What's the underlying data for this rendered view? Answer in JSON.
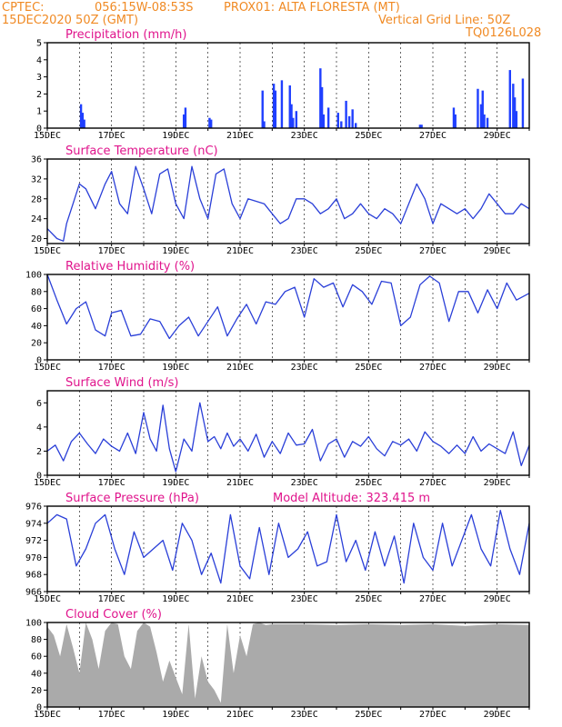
{
  "header": {
    "line1_left": "CPTEC:",
    "coords": "056:15W-08:53S",
    "station": "PROX01: ALTA FLORESTA (MT)",
    "run": "15DEC2020 50Z (GMT)",
    "grid_note": "Vertical Grid Line: 50Z",
    "model_code": "TQ0126L028"
  },
  "x_axis": {
    "start_label": "15DEC",
    "tick_labels": [
      "15DEC",
      "17DEC",
      "19DEC",
      "21DEC",
      "23DEC",
      "25DEC",
      "27DEC",
      "29DEC"
    ],
    "tick_days": [
      0,
      2,
      4,
      6,
      8,
      10,
      12,
      14
    ],
    "total_days": 15
  },
  "chart_data": [
    {
      "type": "bar",
      "title": "Precipitation (mm/h)",
      "ylim": [
        0,
        5
      ],
      "yticks": [
        0,
        1,
        2,
        3,
        4,
        5
      ],
      "color": "#1f3fff",
      "x": [
        1.05,
        1.1,
        1.15,
        4.25,
        4.3,
        5.05,
        5.1,
        6.7,
        6.75,
        7.05,
        7.1,
        7.3,
        7.55,
        7.6,
        7.65,
        7.75,
        8.5,
        8.55,
        8.6,
        8.75,
        9.05,
        9.15,
        9.3,
        9.4,
        9.5,
        9.6,
        11.6,
        11.65,
        12.65,
        12.7,
        13.4,
        13.5,
        13.55,
        13.6,
        13.7,
        14.4,
        14.5,
        14.55,
        14.6,
        14.8
      ],
      "values": [
        1.4,
        0.9,
        0.5,
        0.8,
        1.2,
        0.6,
        0.5,
        2.2,
        0.4,
        2.6,
        2.2,
        2.8,
        2.5,
        1.4,
        0.6,
        1.0,
        3.5,
        2.4,
        0.8,
        1.2,
        0.9,
        0.4,
        1.6,
        0.7,
        1.1,
        0.3,
        0.2,
        0.2,
        1.2,
        0.8,
        2.3,
        1.4,
        2.2,
        0.8,
        0.6,
        3.4,
        2.6,
        1.8,
        1.0,
        2.9
      ]
    },
    {
      "type": "line",
      "title": "Surface Temperature (nC)",
      "ylim": [
        19,
        36
      ],
      "yticks": [
        20,
        24,
        28,
        32,
        36
      ],
      "color": "#2a3fd8",
      "x": [
        0,
        0.3,
        0.5,
        0.6,
        0.8,
        1.0,
        1.2,
        1.5,
        1.8,
        2.0,
        2.25,
        2.5,
        2.75,
        3.0,
        3.25,
        3.5,
        3.75,
        4.0,
        4.25,
        4.5,
        4.75,
        5.0,
        5.25,
        5.5,
        5.75,
        6.0,
        6.25,
        6.5,
        6.75,
        7.0,
        7.25,
        7.5,
        7.75,
        8.0,
        8.25,
        8.5,
        8.75,
        9.0,
        9.25,
        9.5,
        9.75,
        10.0,
        10.25,
        10.5,
        10.75,
        11.0,
        11.25,
        11.5,
        11.75,
        12.0,
        12.25,
        12.5,
        12.75,
        13.0,
        13.25,
        13.5,
        13.75,
        14.0,
        14.25,
        14.5,
        14.75,
        15.0
      ],
      "values": [
        22,
        20,
        19.5,
        23,
        27,
        31,
        30,
        26,
        31,
        33.5,
        27,
        25,
        34.5,
        30,
        25,
        33,
        34,
        27,
        24,
        34.5,
        28,
        24,
        33,
        34,
        27,
        24,
        28,
        27.5,
        27,
        25,
        23,
        24,
        28,
        28,
        27,
        25,
        26,
        28,
        24,
        25,
        27,
        25,
        24,
        26,
        25,
        23,
        27,
        31,
        28,
        23,
        27,
        26,
        25,
        26,
        24,
        26,
        29,
        27,
        25,
        25,
        27,
        26
      ]
    },
    {
      "type": "line",
      "title": "Relative Humidity (%)",
      "ylim": [
        0,
        100
      ],
      "yticks": [
        0,
        20,
        40,
        60,
        80,
        100
      ],
      "color": "#2a3fd8",
      "x": [
        0,
        0.3,
        0.6,
        0.9,
        1.2,
        1.5,
        1.8,
        2.0,
        2.3,
        2.6,
        2.9,
        3.2,
        3.5,
        3.8,
        4.1,
        4.4,
        4.7,
        5.0,
        5.3,
        5.6,
        5.9,
        6.2,
        6.5,
        6.8,
        7.1,
        7.4,
        7.7,
        8.0,
        8.3,
        8.6,
        8.9,
        9.2,
        9.5,
        9.8,
        10.1,
        10.4,
        10.7,
        11.0,
        11.3,
        11.6,
        11.9,
        12.2,
        12.5,
        12.8,
        13.1,
        13.4,
        13.7,
        14.0,
        14.3,
        14.6,
        15.0
      ],
      "values": [
        100,
        70,
        42,
        60,
        68,
        35,
        28,
        55,
        58,
        28,
        30,
        48,
        45,
        25,
        40,
        50,
        28,
        45,
        62,
        28,
        48,
        65,
        42,
        68,
        65,
        80,
        85,
        50,
        95,
        85,
        90,
        62,
        88,
        80,
        65,
        92,
        90,
        40,
        50,
        88,
        98,
        90,
        45,
        80,
        80,
        55,
        82,
        60,
        90,
        70,
        78
      ]
    },
    {
      "type": "line",
      "title": "Surface Wind (m/s)",
      "ylim": [
        0,
        7
      ],
      "yticks": [
        0,
        2,
        4,
        6
      ],
      "color": "#2a3fd8",
      "x": [
        0,
        0.25,
        0.5,
        0.75,
        1.0,
        1.25,
        1.5,
        1.75,
        2.0,
        2.25,
        2.5,
        2.75,
        3.0,
        3.2,
        3.4,
        3.6,
        3.8,
        4.0,
        4.25,
        4.5,
        4.75,
        5.0,
        5.2,
        5.4,
        5.6,
        5.8,
        6.0,
        6.25,
        6.5,
        6.75,
        7.0,
        7.25,
        7.5,
        7.75,
        8.0,
        8.25,
        8.5,
        8.75,
        9.0,
        9.25,
        9.5,
        9.75,
        10.0,
        10.25,
        10.5,
        10.75,
        11.0,
        11.25,
        11.5,
        11.75,
        12.0,
        12.25,
        12.5,
        12.75,
        13.0,
        13.25,
        13.5,
        13.75,
        14.0,
        14.25,
        14.5,
        14.75,
        15.0
      ],
      "values": [
        2,
        2.5,
        1.2,
        2.8,
        3.5,
        2.6,
        1.8,
        3.0,
        2.4,
        2.0,
        3.5,
        1.8,
        5.2,
        3.0,
        2.0,
        5.8,
        2.2,
        0.3,
        3.0,
        2.0,
        6.0,
        2.8,
        3.2,
        2.2,
        3.5,
        2.4,
        3.0,
        2.0,
        3.4,
        1.5,
        2.8,
        1.8,
        3.5,
        2.5,
        2.6,
        3.8,
        1.2,
        2.6,
        3.0,
        1.5,
        2.8,
        2.4,
        3.2,
        2.2,
        1.6,
        2.8,
        2.5,
        3.0,
        2.0,
        3.6,
        2.8,
        2.4,
        1.8,
        2.5,
        1.8,
        3.2,
        2.0,
        2.6,
        2.2,
        1.8,
        3.6,
        0.8,
        2.5
      ]
    },
    {
      "type": "line",
      "title": "Surface Pressure (hPa)",
      "annotation": "Model Altitude: 323.415 m",
      "ylim": [
        966,
        976
      ],
      "yticks": [
        966,
        968,
        970,
        972,
        974,
        976
      ],
      "color": "#2a3fd8",
      "x": [
        0,
        0.3,
        0.6,
        0.9,
        1.2,
        1.5,
        1.8,
        2.1,
        2.4,
        2.7,
        3.0,
        3.3,
        3.6,
        3.9,
        4.2,
        4.5,
        4.8,
        5.1,
        5.4,
        5.7,
        6.0,
        6.3,
        6.6,
        6.9,
        7.2,
        7.5,
        7.8,
        8.1,
        8.4,
        8.7,
        9.0,
        9.3,
        9.6,
        9.9,
        10.2,
        10.5,
        10.8,
        11.1,
        11.4,
        11.7,
        12.0,
        12.3,
        12.6,
        12.9,
        13.2,
        13.5,
        13.8,
        14.1,
        14.4,
        14.7,
        15.0
      ],
      "values": [
        974,
        975,
        974.5,
        969,
        971,
        974,
        975,
        971,
        968,
        973,
        970,
        971,
        972,
        968.5,
        974,
        972,
        968,
        970.5,
        967,
        975,
        969,
        967.5,
        973.5,
        968,
        974,
        970,
        971,
        973,
        969,
        969.5,
        975,
        969.5,
        972,
        968.5,
        973,
        969,
        972.5,
        967,
        974,
        970,
        968.5,
        974,
        969,
        972,
        975,
        971,
        969,
        975.5,
        971,
        968,
        974
      ]
    },
    {
      "type": "area",
      "title": "Cloud Cover (%)",
      "ylim": [
        0,
        100
      ],
      "yticks": [
        0,
        20,
        40,
        60,
        80,
        100
      ],
      "color": "#aaaaaa",
      "x": [
        0,
        0.2,
        0.4,
        0.6,
        0.8,
        1.0,
        1.2,
        1.4,
        1.6,
        1.8,
        2.0,
        2.2,
        2.4,
        2.6,
        2.8,
        3.0,
        3.2,
        3.4,
        3.6,
        3.8,
        4.0,
        4.2,
        4.4,
        4.6,
        4.8,
        5.0,
        5.2,
        5.4,
        5.6,
        5.8,
        6.0,
        6.2,
        6.4,
        6.6,
        6.8,
        7.0,
        8.0,
        9.0,
        10.0,
        11.0,
        12.0,
        13.0,
        14.0,
        15.0
      ],
      "values": [
        95,
        85,
        60,
        98,
        70,
        40,
        100,
        80,
        45,
        90,
        100,
        98,
        60,
        45,
        90,
        100,
        95,
        65,
        30,
        55,
        35,
        15,
        98,
        10,
        60,
        30,
        20,
        5,
        98,
        40,
        85,
        60,
        98,
        100,
        97,
        98,
        98,
        97,
        98,
        97,
        98,
        96,
        98,
        97
      ]
    }
  ]
}
